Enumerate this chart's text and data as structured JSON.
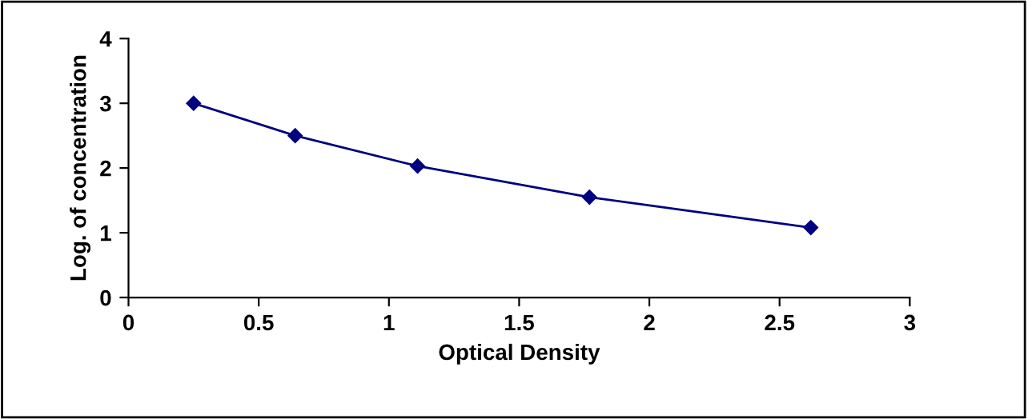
{
  "chart_data": {
    "type": "line",
    "xlabel": "Optical Density",
    "ylabel": "Log. of concentration",
    "x": [
      0.25,
      0.64,
      1.11,
      1.77,
      2.62
    ],
    "series": [
      {
        "color": "#000080",
        "values": [
          3.0,
          2.5,
          2.03,
          1.55,
          1.08
        ]
      }
    ],
    "xlim": [
      0,
      3
    ],
    "xticks": [
      0,
      0.5,
      1,
      1.5,
      2,
      2.5,
      3
    ],
    "ylim": [
      0,
      4
    ],
    "yticks": [
      0,
      1,
      2,
      3,
      4
    ],
    "marker": "diamond",
    "line_style": "solid",
    "grid": false,
    "legend": false
  }
}
